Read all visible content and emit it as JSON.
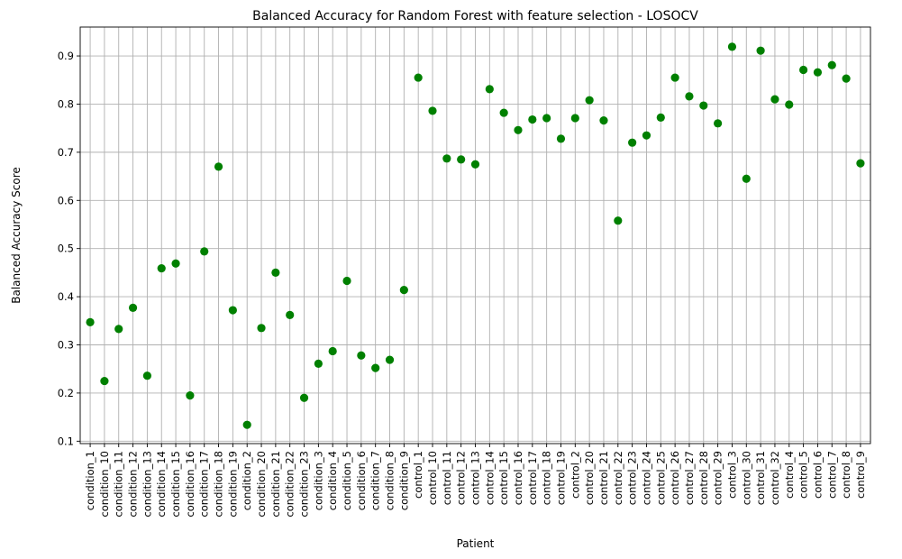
{
  "chart_data": {
    "type": "scatter",
    "title": "Balanced Accuracy for Random Forest with feature selection - LOSOCV",
    "xlabel": "Patient",
    "ylabel": "Balanced Accuracy Score",
    "ylim": [
      0.095,
      0.96
    ],
    "yticks": [
      0.1,
      0.2,
      0.3,
      0.4,
      0.5,
      0.6,
      0.7,
      0.8,
      0.9
    ],
    "grid": true,
    "marker_color": "#008000",
    "categories": [
      "condition_1",
      "condition_10",
      "condition_11",
      "condition_12",
      "condition_13",
      "condition_14",
      "condition_15",
      "condition_16",
      "condition_17",
      "condition_18",
      "condition_19",
      "condition_2",
      "condition_20",
      "condition_21",
      "condition_22",
      "condition_23",
      "condition_3",
      "condition_4",
      "condition_5",
      "condition_6",
      "condition_7",
      "condition_8",
      "condition_9",
      "control_1",
      "control_10",
      "control_11",
      "control_12",
      "control_13",
      "control_14",
      "control_15",
      "control_16",
      "control_17",
      "control_18",
      "control_19",
      "control_2",
      "control_20",
      "control_21",
      "control_22",
      "control_23",
      "control_24",
      "control_25",
      "control_26",
      "control_27",
      "control_28",
      "control_29",
      "control_3",
      "control_30",
      "control_31",
      "control_32",
      "control_4",
      "control_5",
      "control_6",
      "control_7",
      "control_8",
      "control_9"
    ],
    "values": [
      0.347,
      0.225,
      0.333,
      0.377,
      0.236,
      0.459,
      0.469,
      0.195,
      0.494,
      0.67,
      0.372,
      0.134,
      0.335,
      0.45,
      0.362,
      0.19,
      0.261,
      0.287,
      0.433,
      0.278,
      0.252,
      0.269,
      0.414,
      0.855,
      0.786,
      0.687,
      0.685,
      0.675,
      0.831,
      0.782,
      0.746,
      0.768,
      0.771,
      0.728,
      0.771,
      0.808,
      0.766,
      0.558,
      0.72,
      0.735,
      0.772,
      0.855,
      0.816,
      0.797,
      0.76,
      0.919,
      0.645,
      0.911,
      0.81,
      0.799,
      0.871,
      0.866,
      0.881,
      0.853,
      0.677
    ]
  }
}
